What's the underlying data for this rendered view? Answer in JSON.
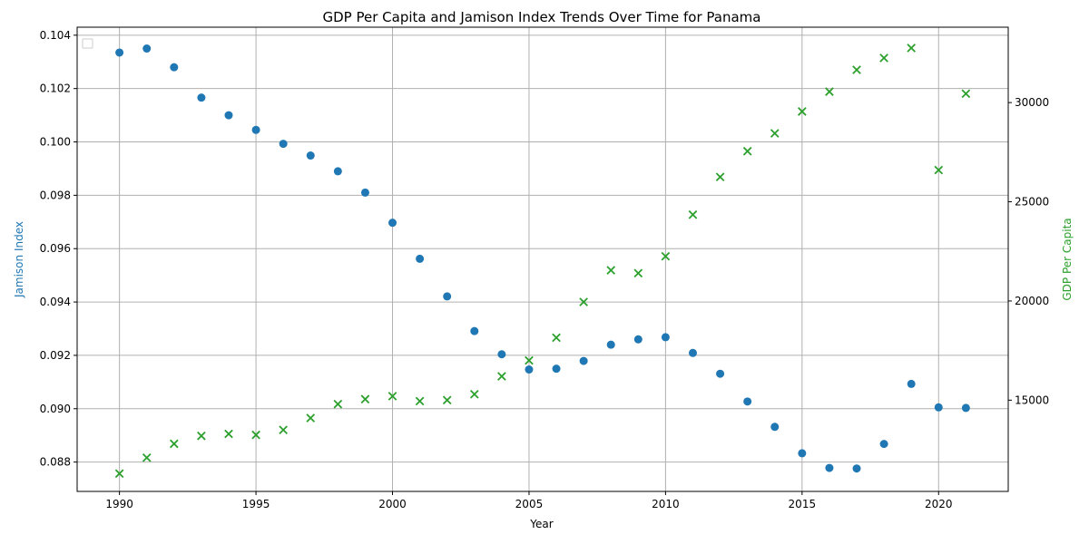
{
  "chart_data": {
    "type": "scatter",
    "title": "GDP Per Capita and Jamison Index Trends Over Time for Panama",
    "xlabel": "Year",
    "ylabel_left": "Jamison Index",
    "ylabel_right": "GDP Per Capita",
    "xlim": [
      1988.45,
      2022.55
    ],
    "ylim_left": [
      0.0869,
      0.1043
    ],
    "ylim_right": [
      10400,
      33800
    ],
    "x_ticks": [
      "1990",
      "1995",
      "2000",
      "2005",
      "2010",
      "2015",
      "2020"
    ],
    "y_ticks_left": [
      "0.088",
      "0.090",
      "0.092",
      "0.094",
      "0.096",
      "0.098",
      "0.100",
      "0.102",
      "0.104"
    ],
    "y_ticks_right": [
      "15000",
      "20000",
      "25000",
      "30000"
    ],
    "grid": true,
    "legend": "upper-left, empty",
    "colors": {
      "jamison": "#1f77b4",
      "gdp": "#2ca02c",
      "grid": "#b0b0b0",
      "axis": "#000000"
    },
    "x": [
      1990,
      1991,
      1992,
      1993,
      1994,
      1995,
      1996,
      1997,
      1998,
      1999,
      2000,
      2001,
      2002,
      2003,
      2004,
      2005,
      2006,
      2007,
      2008,
      2009,
      2010,
      2011,
      2012,
      2013,
      2014,
      2015,
      2016,
      2017,
      2018,
      2019,
      2020,
      2021
    ],
    "series": [
      {
        "axis": "left",
        "marker": "circle",
        "values": [
          0.10335,
          0.1035,
          0.1028,
          0.10166,
          0.101,
          0.10045,
          0.09993,
          0.09949,
          0.0989,
          0.0981,
          0.09697,
          0.09562,
          0.09421,
          0.09291,
          0.09204,
          0.09147,
          0.0915,
          0.09179,
          0.0924,
          0.0926,
          0.09268,
          0.09209,
          0.09131,
          0.09027,
          0.08932,
          0.08833,
          0.08778,
          0.08776,
          0.08868,
          0.09093,
          0.09005,
          0.09003
        ]
      },
      {
        "axis": "right",
        "marker": "x",
        "values": [
          11300,
          12100,
          12800,
          13200,
          13300,
          13250,
          13500,
          14100,
          14800,
          15050,
          15200,
          14950,
          15000,
          15300,
          16200,
          17000,
          18150,
          19950,
          21550,
          21400,
          22250,
          24350,
          26250,
          27550,
          28450,
          29550,
          30550,
          31650,
          32250,
          32750,
          26600,
          30450
        ]
      }
    ]
  }
}
